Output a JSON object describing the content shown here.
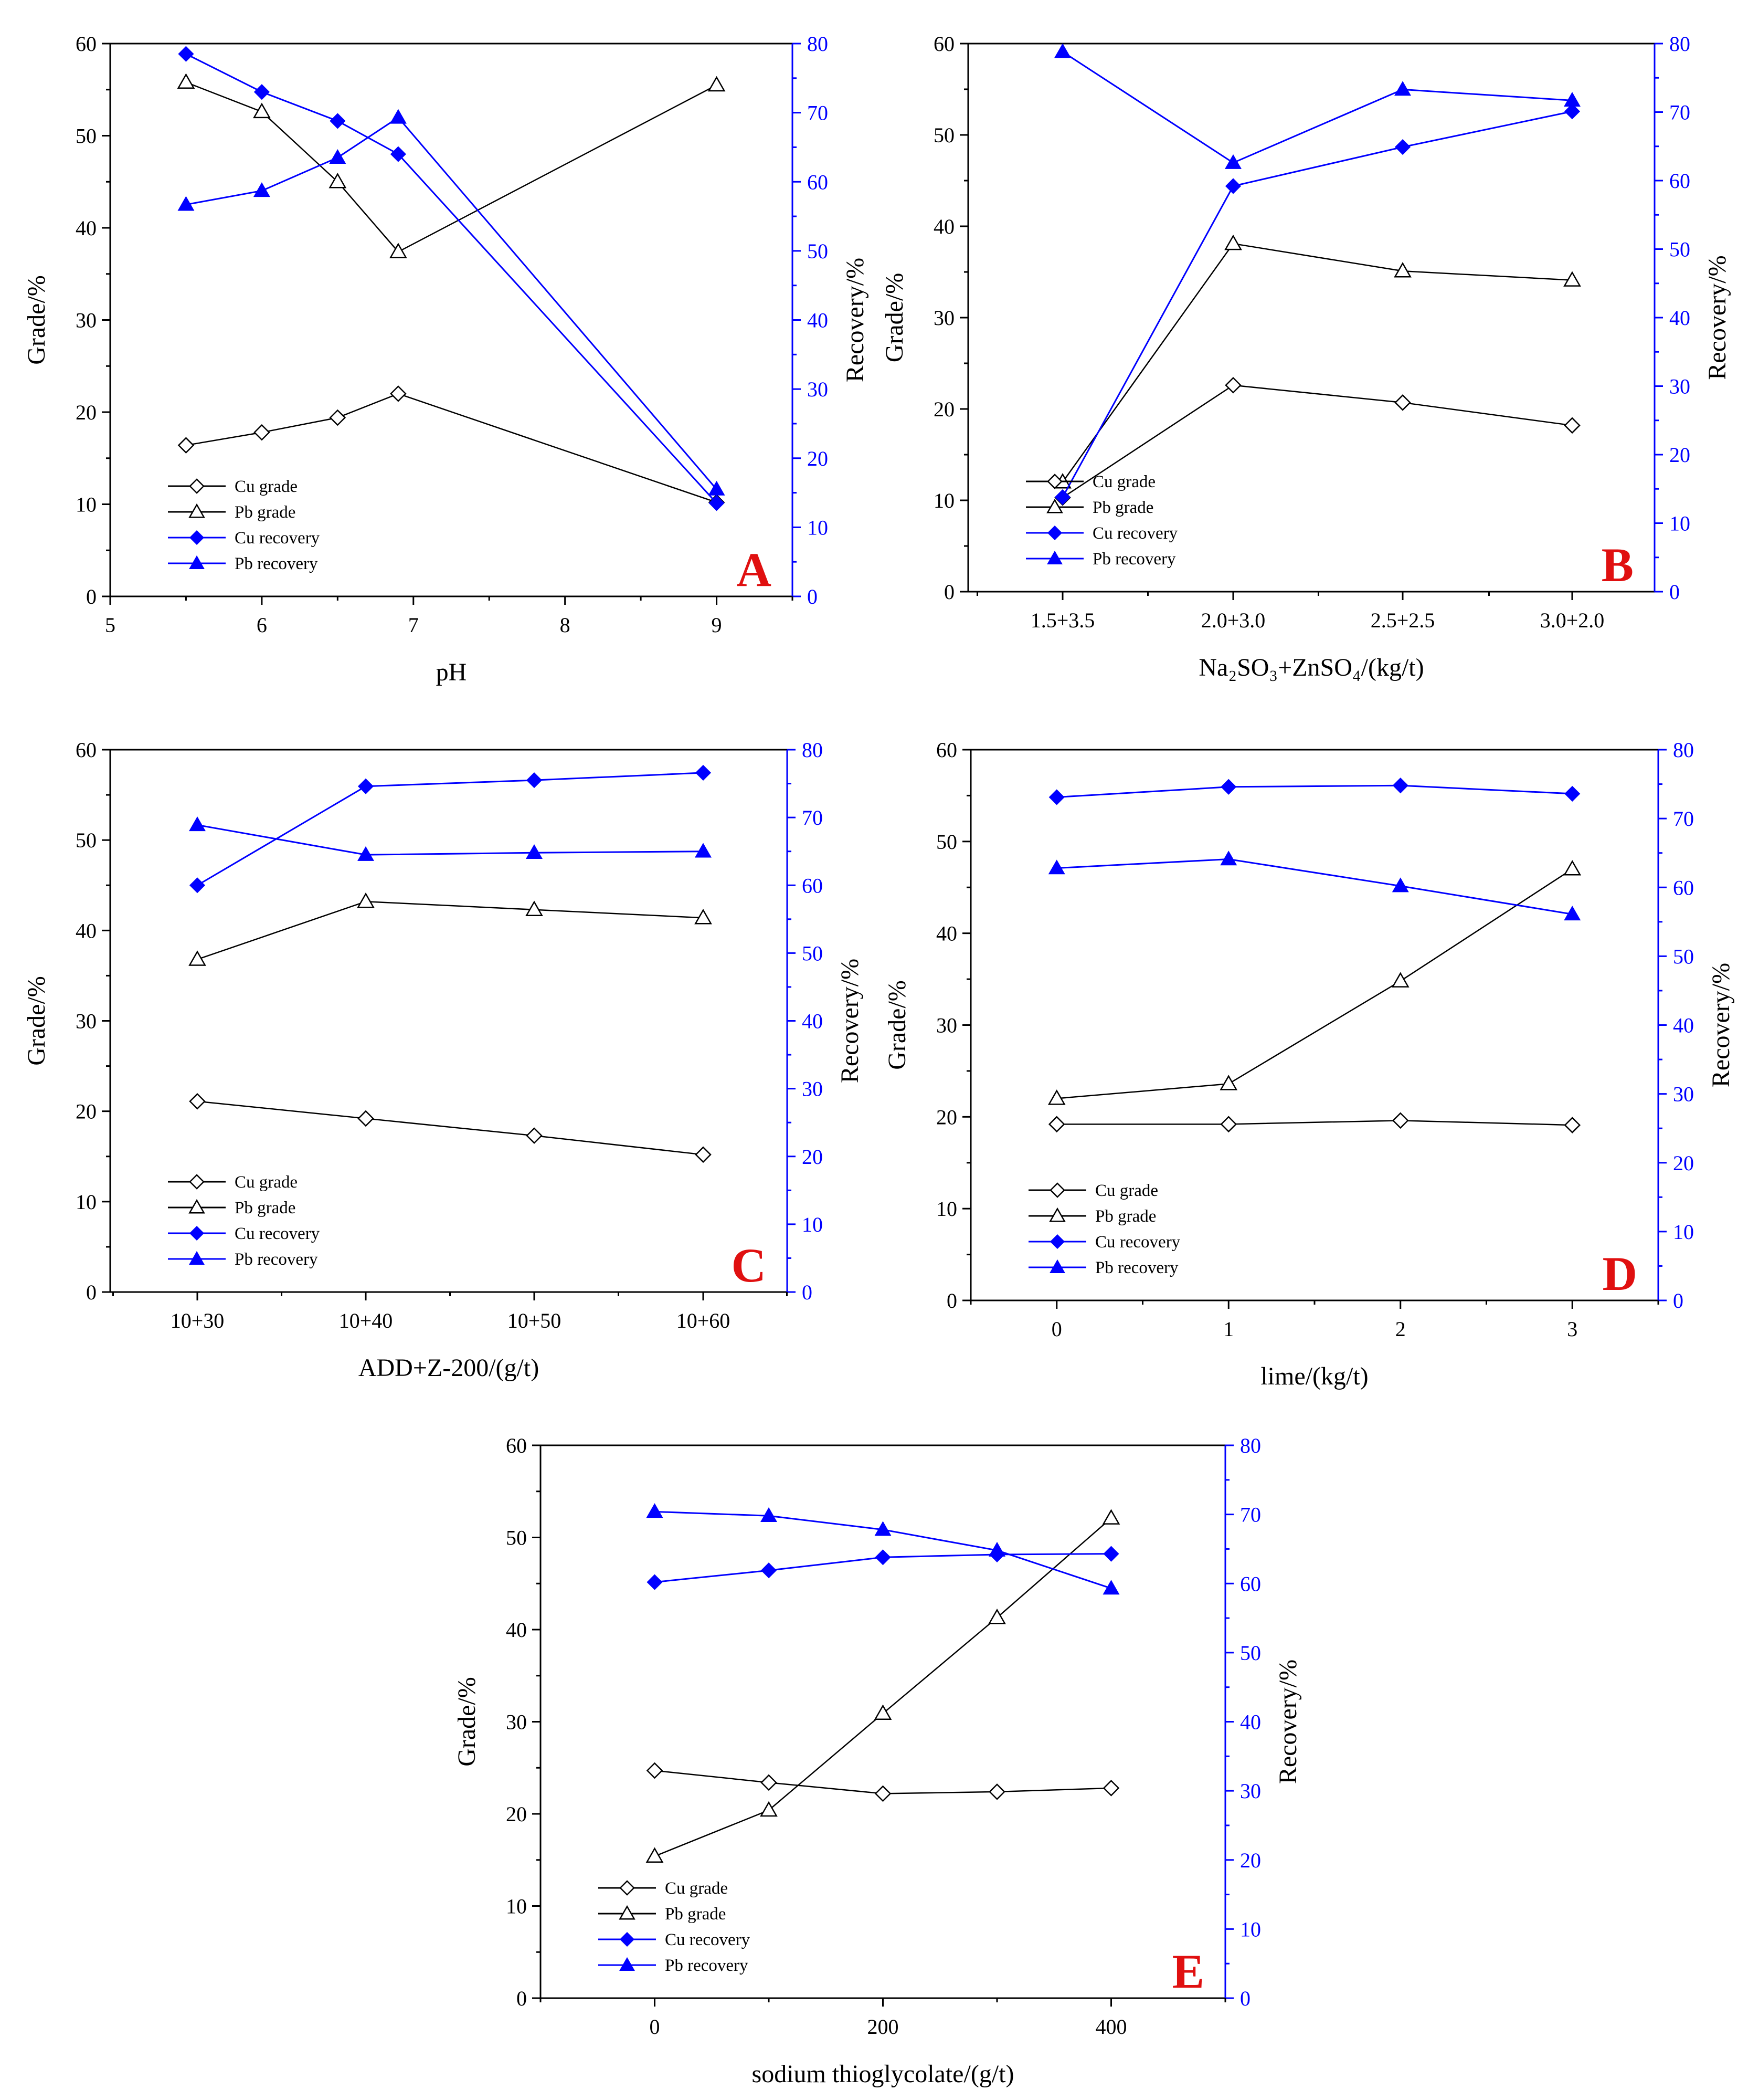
{
  "figure": {
    "colors": {
      "black": "#000000",
      "blue": "#0000ff",
      "tag": "#e01010"
    }
  },
  "chart_data": [
    {
      "id": "A",
      "type": "line",
      "panel_label": "A",
      "title": "",
      "xlabel": "pH",
      "ylabel": "Grade/%",
      "y2label": "Recovery/%",
      "xlim": [
        5,
        9.5
      ],
      "ylim": [
        0,
        60
      ],
      "y2lim": [
        0,
        80
      ],
      "x_ticks": [
        "5",
        "6",
        "7",
        "8",
        "9"
      ],
      "y_ticks": [
        "0",
        "10",
        "20",
        "30",
        "40",
        "50",
        "60"
      ],
      "y2_ticks": [
        "0",
        "10",
        "20",
        "30",
        "40",
        "50",
        "60",
        "70",
        "80"
      ],
      "series": [
        {
          "name": "Cu grade",
          "axis": "left",
          "marker": "diamond-open",
          "color": "#000000",
          "x": [
            5.5,
            6,
            6.5,
            6.9,
            9
          ],
          "values": [
            16.4,
            17.8,
            19.4,
            22.0,
            10.2
          ]
        },
        {
          "name": "Pb grade",
          "axis": "left",
          "marker": "triangle-open",
          "color": "#000000",
          "x": [
            5.5,
            6,
            6.5,
            6.9,
            9
          ],
          "values": [
            55.8,
            52.6,
            45.0,
            37.4,
            55.5
          ]
        },
        {
          "name": "Cu recovery",
          "axis": "right",
          "marker": "diamond-filled",
          "color": "#0000ff",
          "x": [
            5.5,
            6,
            6.5,
            6.9,
            9
          ],
          "values": [
            78.5,
            73.0,
            68.8,
            64.0,
            13.5
          ]
        },
        {
          "name": "Pb recovery",
          "axis": "right",
          "marker": "triangle-filled",
          "color": "#0000ff",
          "x": [
            5.5,
            6,
            6.5,
            6.9,
            9
          ],
          "values": [
            56.7,
            58.7,
            63.5,
            69.3,
            15.5
          ]
        }
      ]
    },
    {
      "id": "B",
      "type": "line",
      "panel_label": "B",
      "title": "",
      "xlabel": "Na₂SO₃+ZnSO₄/(kg/t)",
      "ylabel": "Grade/%",
      "y2label": "Recovery/%",
      "xlim": [
        0,
        1
      ],
      "ylim": [
        0,
        60
      ],
      "y2lim": [
        0,
        80
      ],
      "categories": [
        "1.5+3.5",
        "2.0+3.0",
        "2.5+2.5",
        "3.0+2.0"
      ],
      "x_ticks": [
        "1.5+3.5",
        "2.0+3.0",
        "2.5+2.5",
        "3.0+2.0"
      ],
      "y_ticks": [
        "0",
        "10",
        "20",
        "30",
        "40",
        "50",
        "60"
      ],
      "y2_ticks": [
        "0",
        "10",
        "20",
        "30",
        "40",
        "50",
        "60",
        "70",
        "80"
      ],
      "series": [
        {
          "name": "Cu grade",
          "axis": "left",
          "marker": "diamond-open",
          "color": "#000000",
          "values": [
            10.3,
            22.6,
            20.7,
            18.2
          ]
        },
        {
          "name": "Pb grade",
          "axis": "left",
          "marker": "triangle-open",
          "color": "#000000",
          "values": [
            12.0,
            38.1,
            35.1,
            34.1
          ]
        },
        {
          "name": "Cu recovery",
          "axis": "right",
          "marker": "diamond-filled",
          "color": "#0000ff",
          "values": [
            13.8,
            59.2,
            64.9,
            70.1
          ]
        },
        {
          "name": "Pb recovery",
          "axis": "right",
          "marker": "triangle-filled",
          "color": "#0000ff",
          "values": [
            78.8,
            62.6,
            73.3,
            71.7
          ]
        }
      ]
    },
    {
      "id": "C",
      "type": "line",
      "panel_label": "C",
      "title": "",
      "xlabel": "ADD+Z-200/(g/t)",
      "ylabel": "Grade/%",
      "y2label": "Recovery/%",
      "xlim": [
        0,
        1
      ],
      "ylim": [
        0,
        60
      ],
      "y2lim": [
        0,
        80
      ],
      "categories": [
        "10+30",
        "10+40",
        "10+50",
        "10+60"
      ],
      "x_ticks": [
        "10+30",
        "10+40",
        "10+50",
        "10+60"
      ],
      "y_ticks": [
        "0",
        "10",
        "20",
        "30",
        "40",
        "50",
        "60"
      ],
      "y2_ticks": [
        "0",
        "10",
        "20",
        "30",
        "40",
        "50",
        "60",
        "70",
        "80"
      ],
      "series": [
        {
          "name": "Cu grade",
          "axis": "left",
          "marker": "diamond-open",
          "color": "#000000",
          "values": [
            21.1,
            19.2,
            17.3,
            15.2
          ]
        },
        {
          "name": "Pb grade",
          "axis": "left",
          "marker": "triangle-open",
          "color": "#000000",
          "values": [
            36.8,
            43.2,
            42.3,
            41.4
          ]
        },
        {
          "name": "Cu recovery",
          "axis": "right",
          "marker": "diamond-filled",
          "color": "#0000ff",
          "values": [
            60.0,
            74.6,
            75.5,
            76.6
          ]
        },
        {
          "name": "Pb recovery",
          "axis": "right",
          "marker": "triangle-filled",
          "color": "#0000ff",
          "values": [
            68.9,
            64.5,
            64.8,
            65.0
          ]
        }
      ]
    },
    {
      "id": "D",
      "type": "line",
      "panel_label": "D",
      "title": "",
      "xlabel": "lime/(kg/t)",
      "ylabel": "Grade/%",
      "y2label": "Recovery/%",
      "xlim": [
        -0.5,
        3.5
      ],
      "ylim": [
        0,
        60
      ],
      "y2lim": [
        0,
        80
      ],
      "x_ticks": [
        "0",
        "1",
        "2",
        "3"
      ],
      "y_ticks": [
        "0",
        "10",
        "20",
        "30",
        "40",
        "50",
        "60"
      ],
      "y2_ticks": [
        "0",
        "10",
        "20",
        "30",
        "40",
        "50",
        "60",
        "70",
        "80"
      ],
      "series": [
        {
          "name": "Cu grade",
          "axis": "left",
          "marker": "diamond-open",
          "color": "#000000",
          "x": [
            0,
            1,
            2,
            3
          ],
          "values": [
            19.2,
            19.2,
            19.6,
            19.1
          ]
        },
        {
          "name": "Pb grade",
          "axis": "left",
          "marker": "triangle-open",
          "color": "#000000",
          "x": [
            0,
            1,
            2,
            3
          ],
          "values": [
            22.0,
            23.6,
            34.8,
            47.0
          ]
        },
        {
          "name": "Cu recovery",
          "axis": "right",
          "marker": "diamond-filled",
          "color": "#0000ff",
          "x": [
            0,
            1,
            2,
            3
          ],
          "values": [
            73.1,
            74.6,
            74.8,
            73.6
          ]
        },
        {
          "name": "Pb recovery",
          "axis": "right",
          "marker": "triangle-filled",
          "color": "#0000ff",
          "x": [
            0,
            1,
            2,
            3
          ],
          "values": [
            62.8,
            64.1,
            60.2,
            56.1
          ]
        }
      ]
    },
    {
      "id": "E",
      "type": "line",
      "panel_label": "E",
      "title": "",
      "xlabel": "sodium thioglycolate/(g/t)",
      "ylabel": "Grade/%",
      "y2label": "Recovery/%",
      "xlim": [
        -100,
        500
      ],
      "ylim": [
        0,
        60
      ],
      "y2lim": [
        0,
        80
      ],
      "x_ticks": [
        "0",
        "200",
        "400"
      ],
      "y_ticks": [
        "0",
        "10",
        "20",
        "30",
        "40",
        "50",
        "60"
      ],
      "y2_ticks": [
        "0",
        "10",
        "20",
        "30",
        "40",
        "50",
        "60",
        "70",
        "80"
      ],
      "series": [
        {
          "name": "Cu grade",
          "axis": "left",
          "marker": "diamond-open",
          "color": "#000000",
          "x": [
            0,
            100,
            200,
            300,
            400
          ],
          "values": [
            24.7,
            23.4,
            22.2,
            22.4,
            22.8
          ]
        },
        {
          "name": "Pb grade",
          "axis": "left",
          "marker": "triangle-open",
          "color": "#000000",
          "x": [
            0,
            100,
            200,
            300,
            400
          ],
          "values": [
            15.4,
            20.4,
            30.9,
            41.3,
            52.1
          ]
        },
        {
          "name": "Cu recovery",
          "axis": "right",
          "marker": "diamond-filled",
          "color": "#0000ff",
          "x": [
            0,
            100,
            200,
            300,
            400
          ],
          "values": [
            60.2,
            61.9,
            63.8,
            64.2,
            64.3
          ]
        },
        {
          "name": "Pb recovery",
          "axis": "right",
          "marker": "triangle-filled",
          "color": "#0000ff",
          "x": [
            0,
            100,
            200,
            300,
            400
          ],
          "values": [
            70.4,
            69.8,
            67.8,
            64.8,
            59.3
          ]
        }
      ]
    }
  ]
}
